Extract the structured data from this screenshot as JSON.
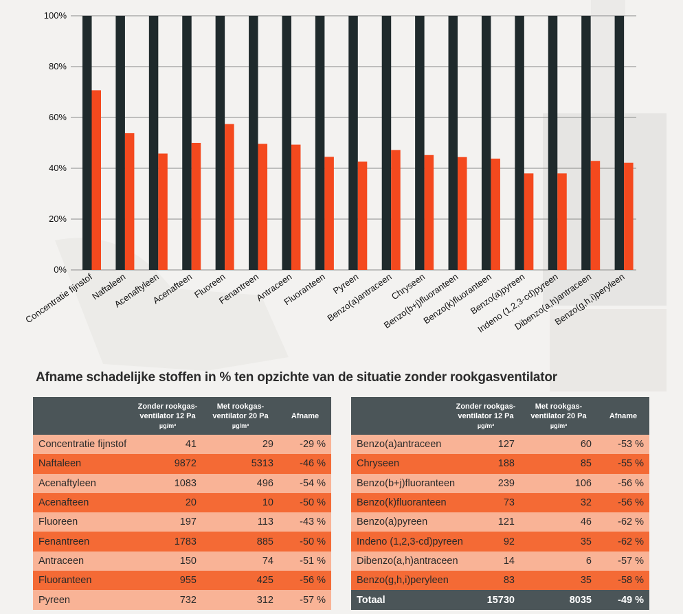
{
  "chart_data": {
    "type": "bar",
    "categories": [
      "Concentratie fijnstof",
      "Naftaleen",
      "Acenaftyleen",
      "Acenafteen",
      "Fluoreen",
      "Fenantreen",
      "Antraceen",
      "Fluoranteen",
      "Pyreen",
      "Benzo(a)antraceen",
      "Chryseen",
      "Benzo(b+j)fluoranteen",
      "Benzo(k)fluoranteen",
      "Benzo(a)pyreen",
      "Indeno (1,2,3-cd)pyreen",
      "Dibenzo(a,h)antraceen",
      "Benzo(g,h,i)peryleen"
    ],
    "series": [
      {
        "name": "Zonder rookgasventilator",
        "color": "#1f2a2c",
        "values": [
          100,
          100,
          100,
          100,
          100,
          100,
          100,
          100,
          100,
          100,
          100,
          100,
          100,
          100,
          100,
          100,
          100
        ]
      },
      {
        "name": "Met rookgasventilator",
        "color": "#f4491e",
        "values": [
          70.7,
          53.8,
          45.8,
          50,
          57.4,
          49.6,
          49.3,
          44.5,
          42.6,
          47.2,
          45.2,
          44.4,
          43.8,
          38,
          38,
          42.9,
          42.2
        ]
      }
    ],
    "yticks": [
      "0%",
      "20%",
      "40%",
      "60%",
      "80%",
      "100%"
    ],
    "ylim": [
      0,
      100
    ],
    "xlabel": "",
    "ylabel": ""
  },
  "section_title": "Afname schadelijke stoffen in % ten opzichte van de situatie zonder rookgasventilator",
  "headers": {
    "col1": "Zonder rookgas-",
    "col1b": "ventilator 12 Pa",
    "col2": "Met rookgas-",
    "col2b": "ventilator 20 Pa",
    "col2b_right": "ventilator  20 Pa",
    "unit": "µg/m³",
    "col3": "Afname"
  },
  "table_left": [
    {
      "name": "Concentratie fijnstof",
      "zonder": "41",
      "met": "29",
      "afname": "-29 %"
    },
    {
      "name": "Naftaleen",
      "zonder": "9872",
      "met": "5313",
      "afname": "-46 %"
    },
    {
      "name": "Acenaftyleen",
      "zonder": "1083",
      "met": "496",
      "afname": "-54 %"
    },
    {
      "name": "Acenafteen",
      "zonder": "20",
      "met": "10",
      "afname": "-50 %"
    },
    {
      "name": "Fluoreen",
      "zonder": "197",
      "met": "113",
      "afname": "-43 %"
    },
    {
      "name": "Fenantreen",
      "zonder": "1783",
      "met": "885",
      "afname": "-50 %"
    },
    {
      "name": "Antraceen",
      "zonder": "150",
      "met": "74",
      "afname": "-51 %"
    },
    {
      "name": "Fluoranteen",
      "zonder": "955",
      "met": "425",
      "afname": "-56 %"
    },
    {
      "name": "Pyreen",
      "zonder": "732",
      "met": "312",
      "afname": "-57 %"
    }
  ],
  "table_right": [
    {
      "name": "Benzo(a)antraceen",
      "zonder": "127",
      "met": "60",
      "afname": "-53 %"
    },
    {
      "name": "Chryseen",
      "zonder": "188",
      "met": "85",
      "afname": "-55 %"
    },
    {
      "name": "Benzo(b+j)fluoranteen",
      "zonder": "239",
      "met": "106",
      "afname": "-56 %"
    },
    {
      "name": "Benzo(k)fluoranteen",
      "zonder": "73",
      "met": "32",
      "afname": "-56 %"
    },
    {
      "name": "Benzo(a)pyreen",
      "zonder": "121",
      "met": "46",
      "afname": "-62 %"
    },
    {
      "name": "Indeno (1,2,3-cd)pyreen",
      "zonder": "92",
      "met": "35",
      "afname": "-62 %"
    },
    {
      "name": "Dibenzo(a,h)antraceen",
      "zonder": "14",
      "met": "6",
      "afname": "-57 %"
    },
    {
      "name": "Benzo(g,h,i)peryleen",
      "zonder": "83",
      "met": "35",
      "afname": "-58 %"
    }
  ],
  "total": {
    "name": "Totaal",
    "zonder": "15730",
    "met": "8035",
    "afname": "-49 %"
  }
}
